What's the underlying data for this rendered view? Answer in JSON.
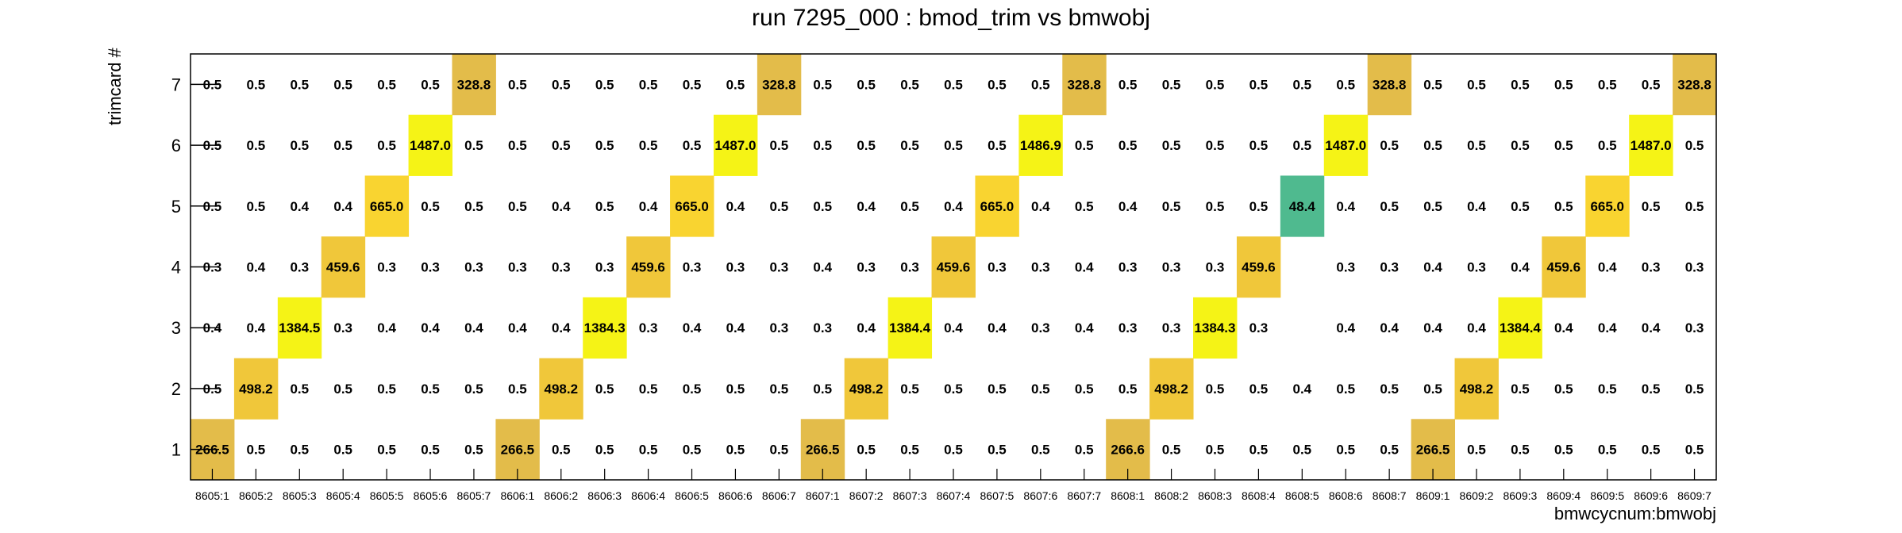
{
  "chart_data": {
    "type": "heatmap",
    "title": "run 7295_000 : bmod_trim vs bmwobj",
    "xlabel": "bmwcycnum:bmwobj",
    "ylabel": "trimcard #",
    "x": [
      "8605:1",
      "8605:2",
      "8605:3",
      "8605:4",
      "8605:5",
      "8605:6",
      "8605:7",
      "8606:1",
      "8606:2",
      "8606:3",
      "8606:4",
      "8606:5",
      "8606:6",
      "8606:7",
      "8607:1",
      "8607:2",
      "8607:3",
      "8607:4",
      "8607:5",
      "8607:6",
      "8607:7",
      "8608:1",
      "8608:2",
      "8608:3",
      "8608:4",
      "8608:5",
      "8608:6",
      "8608:7",
      "8609:1",
      "8609:2",
      "8609:3",
      "8609:4",
      "8609:5",
      "8609:6",
      "8609:7"
    ],
    "y": [
      "1",
      "2",
      "3",
      "4",
      "5",
      "6",
      "7"
    ],
    "values": [
      [
        "266.5",
        "0.5",
        "0.5",
        "0.5",
        "0.5",
        "0.5",
        "0.5",
        "266.5",
        "0.5",
        "0.5",
        "0.5",
        "0.5",
        "0.5",
        "0.5",
        "266.5",
        "0.5",
        "0.5",
        "0.5",
        "0.5",
        "0.5",
        "0.5",
        "266.6",
        "0.5",
        "0.5",
        "0.5",
        "0.5",
        "0.5",
        "0.5",
        "266.5",
        "0.5",
        "0.5",
        "0.5",
        "0.5",
        "0.5",
        "0.5"
      ],
      [
        "0.5",
        "498.2",
        "0.5",
        "0.5",
        "0.5",
        "0.5",
        "0.5",
        "0.5",
        "498.2",
        "0.5",
        "0.5",
        "0.5",
        "0.5",
        "0.5",
        "0.5",
        "498.2",
        "0.5",
        "0.5",
        "0.5",
        "0.5",
        "0.5",
        "0.5",
        "498.2",
        "0.5",
        "0.5",
        "0.4",
        "0.5",
        "0.5",
        "0.5",
        "498.2",
        "0.5",
        "0.5",
        "0.5",
        "0.5",
        "0.5"
      ],
      [
        "0.4",
        "0.4",
        "1384.5",
        "0.3",
        "0.4",
        "0.4",
        "0.4",
        "0.4",
        "0.4",
        "1384.3",
        "0.3",
        "0.4",
        "0.4",
        "0.3",
        "0.3",
        "0.4",
        "1384.4",
        "0.4",
        "0.4",
        "0.3",
        "0.4",
        "0.3",
        "0.3",
        "1384.3",
        "0.3",
        null,
        "0.4",
        "0.4",
        "0.4",
        "0.4",
        "1384.4",
        "0.4",
        "0.4",
        "0.4",
        "0.3"
      ],
      [
        "0.3",
        "0.4",
        "0.3",
        "459.6",
        "0.3",
        "0.3",
        "0.3",
        "0.3",
        "0.3",
        "0.3",
        "459.6",
        "0.3",
        "0.3",
        "0.3",
        "0.4",
        "0.3",
        "0.3",
        "459.6",
        "0.3",
        "0.3",
        "0.4",
        "0.3",
        "0.3",
        "0.3",
        "459.6",
        null,
        "0.3",
        "0.3",
        "0.4",
        "0.3",
        "0.4",
        "459.6",
        "0.4",
        "0.3",
        "0.3"
      ],
      [
        "0.5",
        "0.5",
        "0.4",
        "0.4",
        "665.0",
        "0.5",
        "0.5",
        "0.5",
        "0.4",
        "0.5",
        "0.4",
        "665.0",
        "0.4",
        "0.5",
        "0.5",
        "0.4",
        "0.5",
        "0.4",
        "665.0",
        "0.4",
        "0.5",
        "0.4",
        "0.5",
        "0.5",
        "0.5",
        "48.4",
        "0.4",
        "0.5",
        "0.5",
        "0.4",
        "0.5",
        "0.5",
        "665.0",
        "0.5",
        "0.5"
      ],
      [
        "0.5",
        "0.5",
        "0.5",
        "0.5",
        "0.5",
        "1487.0",
        "0.5",
        "0.5",
        "0.5",
        "0.5",
        "0.5",
        "0.5",
        "1487.0",
        "0.5",
        "0.5",
        "0.5",
        "0.5",
        "0.5",
        "0.5",
        "1486.9",
        "0.5",
        "0.5",
        "0.5",
        "0.5",
        "0.5",
        "0.5",
        "1487.0",
        "0.5",
        "0.5",
        "0.5",
        "0.5",
        "0.5",
        "0.5",
        "1487.0",
        "0.5"
      ],
      [
        "0.5",
        "0.5",
        "0.5",
        "0.5",
        "0.5",
        "0.5",
        "328.8",
        "0.5",
        "0.5",
        "0.5",
        "0.5",
        "0.5",
        "0.5",
        "328.8",
        "0.5",
        "0.5",
        "0.5",
        "0.5",
        "0.5",
        "0.5",
        "328.8",
        "0.5",
        "0.5",
        "0.5",
        "0.5",
        "0.5",
        "0.5",
        "328.8",
        "0.5",
        "0.5",
        "0.5",
        "0.5",
        "0.5",
        "0.5",
        "328.8"
      ]
    ],
    "palette": {
      "very_high": "#f5f316",
      "high": "#f9d430",
      "mid_high": "#f0c73a",
      "mid": "#e3bc4a",
      "low": "#4fba8f"
    },
    "grid": false,
    "legend": "none"
  }
}
